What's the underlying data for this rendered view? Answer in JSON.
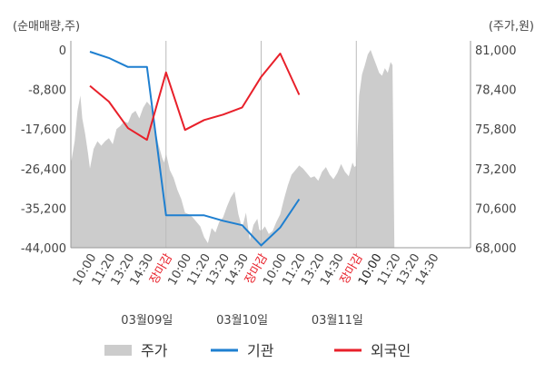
{
  "chart_data": {
    "type": "line",
    "left_axis_label": "(순매매량,주)",
    "right_axis_label": "(주가,원)",
    "left_ticks": [
      0,
      -8800,
      -17600,
      -26400,
      -35200,
      -44000
    ],
    "left_tick_labels": [
      "0",
      "-8,800",
      "-17,600",
      "-26,400",
      "-35,200",
      "-44,000"
    ],
    "left_range": [
      -44000,
      0
    ],
    "right_ticks": [
      81000,
      78400,
      75800,
      73200,
      70600,
      68000
    ],
    "right_tick_labels": [
      "81,000",
      "78,400",
      "75,800",
      "73,200",
      "70,600",
      "68,000"
    ],
    "right_range": [
      68000,
      81000
    ],
    "x_range": [
      0,
      21
    ],
    "x_ticks": [
      {
        "x": 1,
        "label": "10:00",
        "color": "#444444"
      },
      {
        "x": 2,
        "label": "11:20",
        "color": "#444444"
      },
      {
        "x": 3,
        "label": "13:20",
        "color": "#444444"
      },
      {
        "x": 4,
        "label": "14:30",
        "color": "#444444"
      },
      {
        "x": 5,
        "label": "장마감",
        "color": "#e8202a"
      },
      {
        "x": 6,
        "label": "10:00",
        "color": "#444444"
      },
      {
        "x": 7,
        "label": "11:20",
        "color": "#444444"
      },
      {
        "x": 8,
        "label": "13:20",
        "color": "#444444"
      },
      {
        "x": 9,
        "label": "14:30",
        "color": "#444444"
      },
      {
        "x": 10,
        "label": "장마감",
        "color": "#e8202a"
      },
      {
        "x": 11,
        "label": "10:00",
        "color": "#444444"
      },
      {
        "x": 12,
        "label": "11:20",
        "color": "#444444"
      },
      {
        "x": 13,
        "label": "13:20",
        "color": "#444444"
      },
      {
        "x": 14,
        "label": "14:30",
        "color": "#444444"
      },
      {
        "x": 15,
        "label": "장마감",
        "color": "#e8202a"
      },
      {
        "x": 16,
        "label": "10:00",
        "color": "#222222"
      },
      {
        "x": 17,
        "label": "11:20",
        "color": "#444444"
      },
      {
        "x": 18,
        "label": "13:20",
        "color": "#444444"
      },
      {
        "x": 19,
        "label": "14:30",
        "color": "#444444"
      }
    ],
    "day_labels": [
      {
        "x": 4,
        "label": "03월09일"
      },
      {
        "x": 9,
        "label": "03월10일"
      },
      {
        "x": 14,
        "label": "03월11일"
      }
    ],
    "session_dividers": [
      5,
      10,
      15
    ],
    "series": [
      {
        "name": "주가",
        "axis": "right",
        "kind": "area",
        "color": "#cccccc",
        "x": [
          0,
          0.2,
          0.35,
          0.5,
          0.6,
          0.75,
          0.9,
          1.0,
          1.2,
          1.4,
          1.6,
          1.8,
          2.0,
          2.2,
          2.4,
          2.6,
          2.8,
          3.0,
          3.2,
          3.4,
          3.6,
          3.8,
          4.0,
          4.2,
          4.4,
          4.6,
          4.8,
          4.9,
          5.0,
          5.2,
          5.4,
          5.6,
          5.8,
          6.0,
          6.2,
          6.4,
          6.6,
          6.8,
          7.0,
          7.2,
          7.4,
          7.6,
          7.8,
          8.0,
          8.2,
          8.4,
          8.6,
          8.8,
          9.0,
          9.2,
          9.4,
          9.6,
          9.8,
          9.9,
          10.0,
          10.2,
          10.4,
          10.6,
          10.8,
          11.0,
          11.2,
          11.4,
          11.6,
          11.8,
          12.0,
          12.2,
          12.4,
          12.6,
          12.8,
          13.0,
          13.2,
          13.4,
          13.6,
          13.8,
          14.0,
          14.2,
          14.4,
          14.6,
          14.8,
          14.9,
          15.0,
          15.15,
          15.3,
          15.45,
          15.6,
          15.75,
          15.9,
          16.05,
          16.2,
          16.35,
          16.5,
          16.65,
          16.8,
          16.9,
          17.0
        ],
        "y": [
          73500,
          75000,
          77000,
          78000,
          76500,
          75500,
          74200,
          73200,
          74500,
          75000,
          74700,
          75000,
          75200,
          74800,
          75800,
          76000,
          76300,
          76200,
          76800,
          77000,
          76500,
          77200,
          77600,
          77300,
          76000,
          74800,
          73900,
          73600,
          74200,
          73100,
          72600,
          71800,
          71200,
          70300,
          70200,
          70000,
          69700,
          69400,
          68700,
          68300,
          69300,
          69000,
          69700,
          70000,
          70700,
          71300,
          71700,
          70200,
          69300,
          70300,
          68500,
          69500,
          69900,
          69200,
          69100,
          69400,
          68900,
          69100,
          69700,
          70200,
          71200,
          72100,
          72800,
          73100,
          73400,
          73200,
          72900,
          72600,
          72700,
          72400,
          73000,
          73300,
          72800,
          72500,
          72900,
          73500,
          73000,
          72700,
          73600,
          73300,
          73400,
          78000,
          79400,
          80000,
          80700,
          81000,
          80500,
          80000,
          79500,
          79300,
          79800,
          79500,
          80200,
          80000,
          68000
        ]
      },
      {
        "name": "기관",
        "axis": "left",
        "kind": "line",
        "color": "#1e7fd0",
        "x": [
          1,
          2,
          3,
          4,
          5,
          6,
          7,
          8,
          9,
          10,
          11,
          12
        ],
        "y": [
          -400,
          -1800,
          -3800,
          -3800,
          -36800,
          -36800,
          -36800,
          -38000,
          -39000,
          -43500,
          -39500,
          -33200
        ]
      },
      {
        "name": "외국인",
        "axis": "left",
        "kind": "line",
        "color": "#e8202a",
        "x": [
          1,
          2,
          3,
          4,
          5,
          6,
          7,
          8,
          9,
          10,
          11,
          12
        ],
        "y": [
          -8000,
          -11500,
          -17400,
          -20000,
          -5000,
          -17800,
          -15600,
          -14400,
          -12800,
          -6000,
          -800,
          -10000
        ]
      }
    ],
    "legend": [
      {
        "label": "주가",
        "color": "#cccccc",
        "kind": "area"
      },
      {
        "label": "기관",
        "color": "#1e7fd0",
        "kind": "line"
      },
      {
        "label": "외국인",
        "color": "#e8202a",
        "kind": "line"
      }
    ],
    "legend_position": "bottom-center",
    "grid": false
  }
}
